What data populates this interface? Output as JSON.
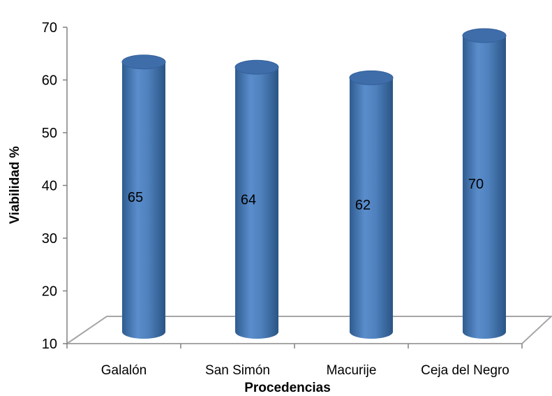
{
  "chart_data": {
    "type": "bar",
    "style": "3d-cylinder",
    "categories": [
      "Galalón",
      "San Simón",
      "Macurije",
      "Ceja del Negro"
    ],
    "series": [
      {
        "values": [
          65,
          64,
          62,
          70
        ],
        "data_labels": [
          "65",
          "64",
          "62",
          "70"
        ]
      }
    ],
    "xlabel": "Procedencias",
    "ylabel": "Viabilidad %",
    "ylim": [
      10,
      70
    ],
    "yticks": [
      "10",
      "20",
      "30",
      "40",
      "50",
      "60",
      "70"
    ],
    "grid": false,
    "legend": "none",
    "colors": {
      "bar_body": "#4F81BD",
      "bar_light": "#8EB4E3",
      "bar_dark": "#2F5C8F",
      "bar_top": "#3E6DAA",
      "floor_edge": "#A6A6A6",
      "axis": "#808080"
    }
  }
}
